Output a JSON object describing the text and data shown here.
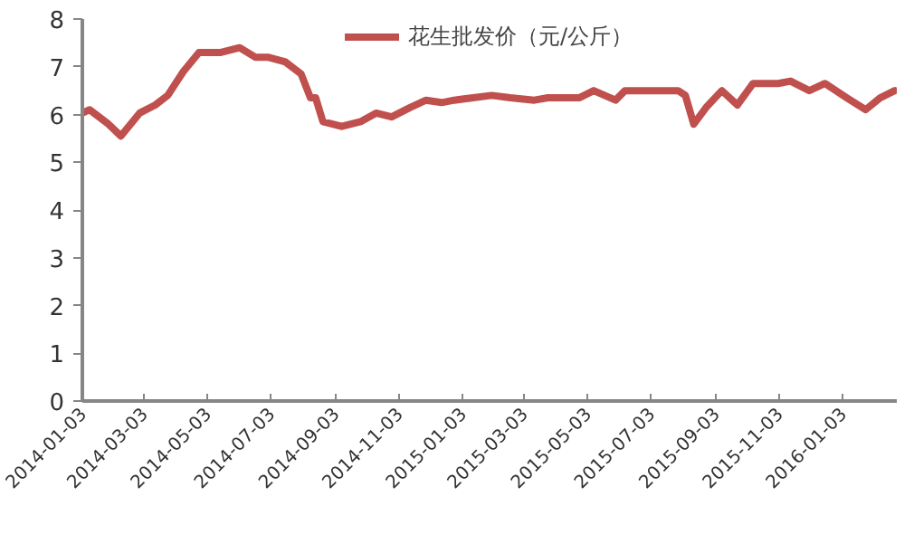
{
  "chart_data": {
    "type": "line",
    "x": [
      "2014-01-03",
      "2014-01-10",
      "2014-01-28",
      "2014-02-09",
      "2014-02-27",
      "2014-03-14",
      "2014-03-26",
      "2014-04-10",
      "2014-04-25",
      "2014-05-16",
      "2014-06-03",
      "2014-06-18",
      "2014-06-30",
      "2014-07-17",
      "2014-08-01",
      "2014-08-10",
      "2014-08-15",
      "2014-08-22",
      "2014-09-09",
      "2014-09-27",
      "2014-10-12",
      "2014-10-27",
      "2014-11-14",
      "2014-11-29",
      "2014-12-14",
      "2014-12-26",
      "2015-01-31",
      "2015-02-18",
      "2015-03-13",
      "2015-03-26",
      "2015-04-25",
      "2015-05-09",
      "2015-05-30",
      "2015-06-08",
      "2015-07-29",
      "2015-08-05",
      "2015-08-13",
      "2015-08-25",
      "2015-09-09",
      "2015-09-24",
      "2015-10-09",
      "2015-11-02",
      "2015-11-14",
      "2015-12-02",
      "2015-12-17",
      "2016-01-07",
      "2016-01-25",
      "2016-02-08",
      "2016-02-22"
    ],
    "series": [
      {
        "name": "花生批发价（元/公斤）",
        "color": "#c0504d",
        "values": [
          6.03,
          6.1,
          5.8,
          5.55,
          6.03,
          6.2,
          6.4,
          6.9,
          7.3,
          7.3,
          7.4,
          7.2,
          7.2,
          7.1,
          6.85,
          6.35,
          6.35,
          5.85,
          5.75,
          5.85,
          6.03,
          5.95,
          6.15,
          6.3,
          6.25,
          6.3,
          6.4,
          6.35,
          6.3,
          6.35,
          6.35,
          6.5,
          6.3,
          6.5,
          6.5,
          6.4,
          5.8,
          6.15,
          6.5,
          6.2,
          6.65,
          6.65,
          6.7,
          6.5,
          6.65,
          6.35,
          6.1,
          6.35,
          6.5
        ]
      }
    ],
    "xlim": [
      "2014-01-03",
      "2016-02-24"
    ],
    "xticks": [
      "2014-01-03",
      "2014-03-03",
      "2014-05-03",
      "2014-07-03",
      "2014-09-03",
      "2014-11-03",
      "2015-01-03",
      "2015-03-03",
      "2015-05-03",
      "2015-07-03",
      "2015-09-03",
      "2015-11-03",
      "2016-01-03"
    ],
    "ylim": [
      0,
      8
    ],
    "yticks": [
      0,
      1,
      2,
      3,
      4,
      5,
      6,
      7,
      8
    ],
    "grid": false,
    "legend": "top",
    "line_style": "solid",
    "marker": "none"
  }
}
